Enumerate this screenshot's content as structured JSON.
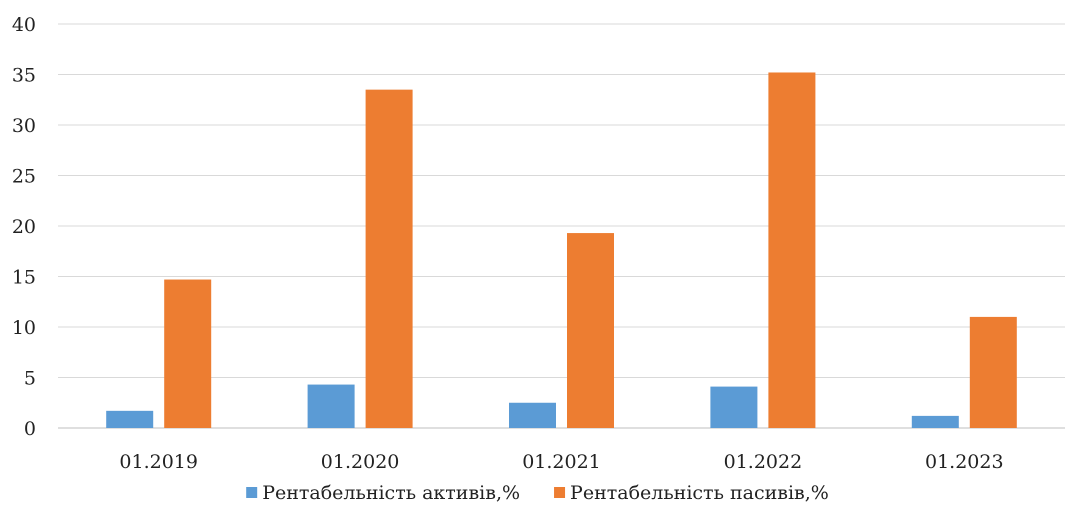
{
  "chart_data": {
    "type": "bar",
    "title": "",
    "xlabel": "",
    "ylabel": "",
    "categories": [
      "01.2019",
      "01.2020",
      "01.2021",
      "01.2022",
      "01.2023"
    ],
    "series": [
      {
        "name": "Рентабельність активів,%",
        "color": "#5b9bd5",
        "values": [
          1.7,
          4.3,
          2.5,
          4.1,
          1.2
        ]
      },
      {
        "name": "Рентабельність пасивів,%",
        "color": "#ed7d31",
        "values": [
          14.7,
          33.5,
          19.3,
          35.2,
          11.0
        ]
      }
    ],
    "ylim": [
      0,
      40
    ],
    "yticks": [
      0,
      5,
      10,
      15,
      20,
      25,
      30,
      35,
      40
    ],
    "grid": true,
    "legend_position": "bottom"
  }
}
